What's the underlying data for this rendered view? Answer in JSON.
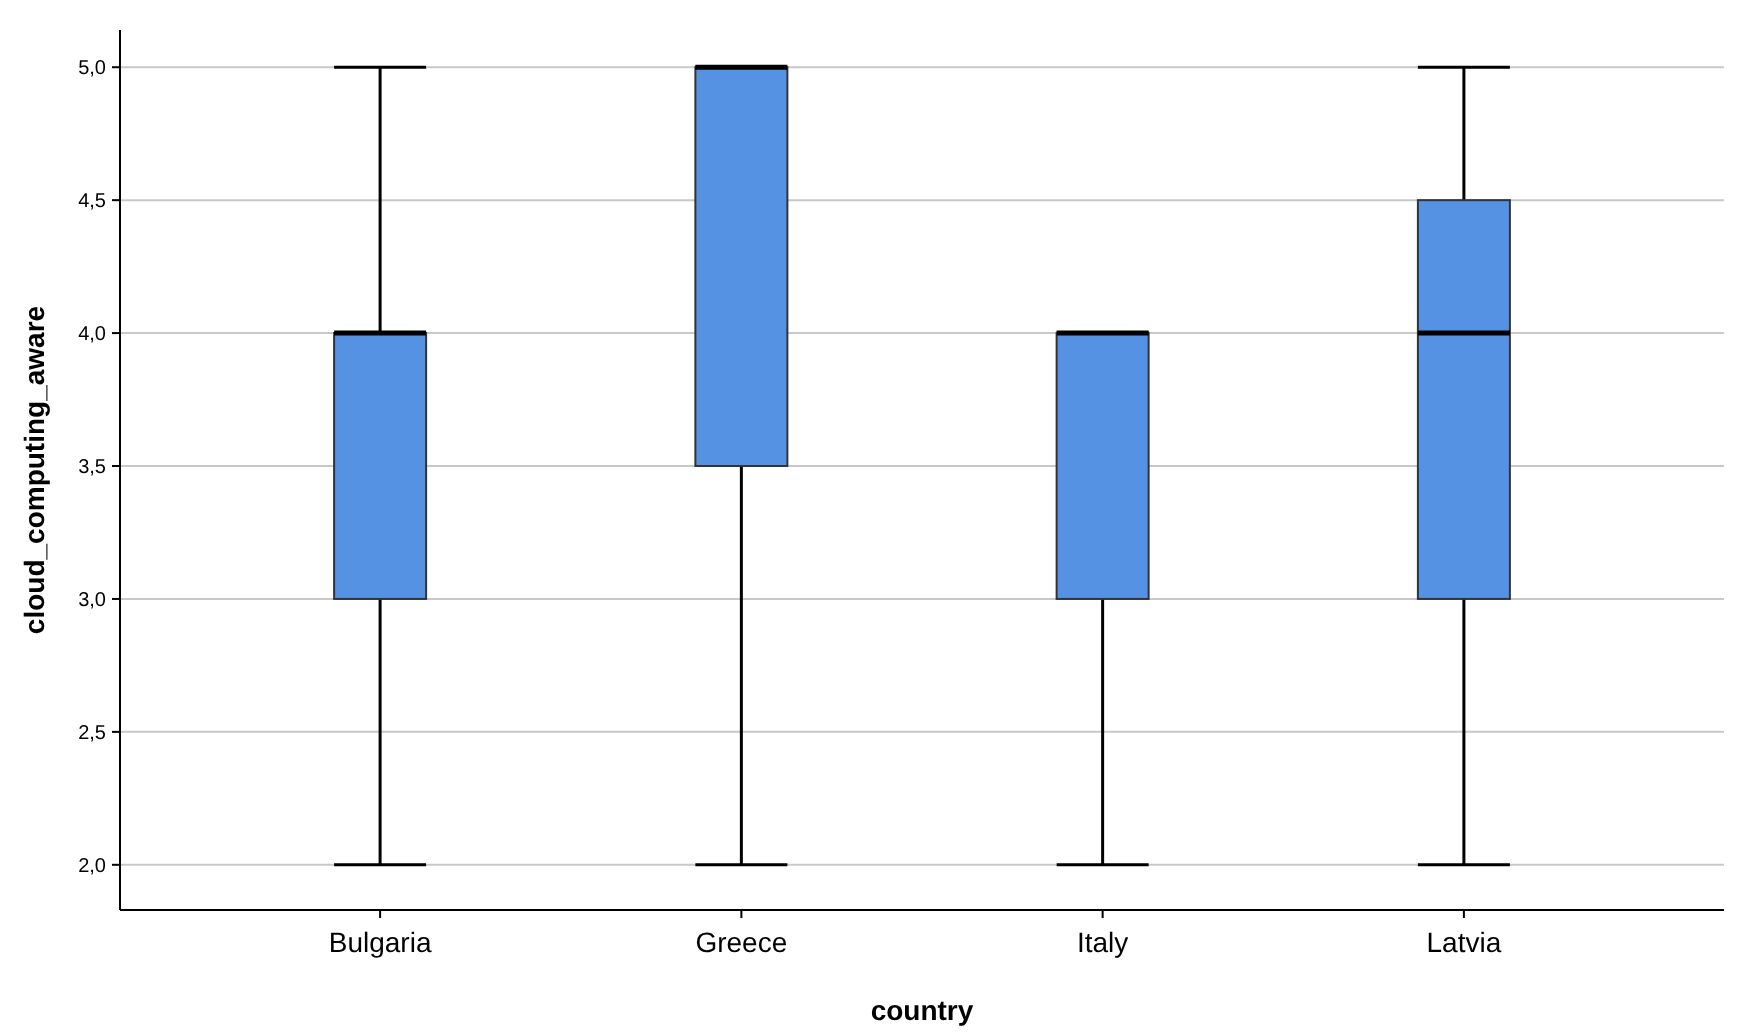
{
  "chart_data": {
    "type": "box",
    "xlabel": "country",
    "ylabel": "cloud_computing_aware",
    "categories": [
      "Bulgaria",
      "Greece",
      "Italy",
      "Latvia"
    ],
    "color": "#5592e3",
    "ylim": [
      1.83,
      5.14
    ],
    "yticks": [
      {
        "value": 2,
        "label": "2,0"
      },
      {
        "value": 2.5,
        "label": "2,5"
      },
      {
        "value": 3,
        "label": "3,0"
      },
      {
        "value": 3.5,
        "label": "3,5"
      },
      {
        "value": 4,
        "label": "4,0"
      },
      {
        "value": 4.5,
        "label": "4,5"
      },
      {
        "value": 5,
        "label": "5,0"
      }
    ],
    "grid": "y",
    "boxes": [
      {
        "low": 2,
        "q1": 3,
        "median": 4,
        "q3": 4,
        "high": 5
      },
      {
        "low": 2,
        "q1": 3.5,
        "median": 5,
        "q3": 5,
        "high": 5
      },
      {
        "low": 2,
        "q1": 3,
        "median": 4,
        "q3": 4,
        "high": 4
      },
      {
        "low": 2,
        "q1": 3,
        "median": 4,
        "q3": 4.5,
        "high": 5
      }
    ]
  }
}
